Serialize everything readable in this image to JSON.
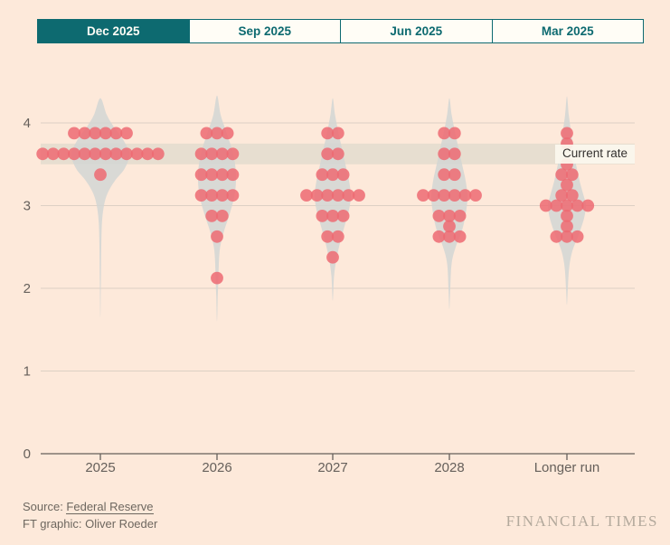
{
  "tabs": [
    {
      "label": "Dec 2025",
      "active": true
    },
    {
      "label": "Sep 2025",
      "active": false
    },
    {
      "label": "Jun 2025",
      "active": false
    },
    {
      "label": "Mar 2025",
      "active": false
    }
  ],
  "current_rate": {
    "label": "Current rate",
    "band_low": 3.5,
    "band_high": 3.75
  },
  "source": {
    "prefix": "Source: ",
    "link": "Federal Reserve",
    "credit": "FT graphic: Oliver Roeder"
  },
  "brand": "FINANCIAL TIMES",
  "colors": {
    "background": "#fde9da",
    "teal": "#0d6a70",
    "tab_inactive_bg": "#fffdf6",
    "dot": "#ed6a72",
    "violin": "#d2d6d4",
    "band": "#e7ded0",
    "gridline": "#ddd0c4",
    "axis": "#66605b",
    "tick_text": "#66605b"
  },
  "chart_data": {
    "type": "scatter",
    "title": "",
    "description": "Fed dot plot: FOMC participants' projections for the federal funds rate (%), midpoints of target ranges, with density violins per horizon",
    "xlabel": "",
    "ylabel": "",
    "ylim": [
      0,
      4.35
    ],
    "y_gridlines": [
      0,
      1,
      2,
      3,
      4
    ],
    "y_tick_labels": [
      "0",
      "1",
      "2",
      "3",
      "4"
    ],
    "categories": [
      "2025",
      "2026",
      "2027",
      "2028",
      "Longer run"
    ],
    "legend": null,
    "grid": true,
    "current_rate_band": [
      3.5,
      3.75
    ],
    "columns": [
      {
        "label": "2025",
        "dots": [
          {
            "value": 3.875,
            "count": 6
          },
          {
            "value": 3.625,
            "count": 12
          },
          {
            "value": 3.375,
            "count": 1
          }
        ]
      },
      {
        "label": "2026",
        "dots": [
          {
            "value": 3.875,
            "count": 3
          },
          {
            "value": 3.625,
            "count": 4
          },
          {
            "value": 3.375,
            "count": 4
          },
          {
            "value": 3.125,
            "count": 4
          },
          {
            "value": 2.875,
            "count": 2
          },
          {
            "value": 2.625,
            "count": 1
          },
          {
            "value": 2.125,
            "count": 1
          }
        ]
      },
      {
        "label": "2027",
        "dots": [
          {
            "value": 3.875,
            "count": 2
          },
          {
            "value": 3.625,
            "count": 2
          },
          {
            "value": 3.375,
            "count": 3
          },
          {
            "value": 3.125,
            "count": 6
          },
          {
            "value": 2.875,
            "count": 3
          },
          {
            "value": 2.625,
            "count": 2
          },
          {
            "value": 2.375,
            "count": 1
          }
        ]
      },
      {
        "label": "2028",
        "dots": [
          {
            "value": 3.875,
            "count": 2
          },
          {
            "value": 3.625,
            "count": 2
          },
          {
            "value": 3.375,
            "count": 2
          },
          {
            "value": 3.125,
            "count": 6
          },
          {
            "value": 2.875,
            "count": 3
          },
          {
            "value": 2.75,
            "count": 1
          },
          {
            "value": 2.625,
            "count": 3
          }
        ]
      },
      {
        "label": "Longer run",
        "dots": [
          {
            "value": 3.875,
            "count": 1
          },
          {
            "value": 3.75,
            "count": 1
          },
          {
            "value": 3.5,
            "count": 1
          },
          {
            "value": 3.375,
            "count": 2
          },
          {
            "value": 3.25,
            "count": 1
          },
          {
            "value": 3.125,
            "count": 2
          },
          {
            "value": 3.0,
            "count": 5
          },
          {
            "value": 2.875,
            "count": 1
          },
          {
            "value": 2.75,
            "count": 1
          },
          {
            "value": 2.625,
            "count": 3
          }
        ]
      }
    ],
    "violins": [
      [
        [
          4.3,
          0
        ],
        [
          4.1,
          7
        ],
        [
          3.95,
          15
        ],
        [
          3.8,
          25
        ],
        [
          3.625,
          32
        ],
        [
          3.45,
          27
        ],
        [
          3.3,
          16
        ],
        [
          3.15,
          8
        ],
        [
          3.0,
          4
        ],
        [
          2.8,
          1.8
        ],
        [
          2.5,
          1
        ],
        [
          2.1,
          0.6
        ],
        [
          1.65,
          0
        ]
      ],
      [
        [
          4.33,
          0
        ],
        [
          4.1,
          4
        ],
        [
          3.9,
          10
        ],
        [
          3.7,
          16
        ],
        [
          3.5,
          20
        ],
        [
          3.3,
          21
        ],
        [
          3.1,
          19
        ],
        [
          2.9,
          14
        ],
        [
          2.7,
          8
        ],
        [
          2.5,
          3.5
        ],
        [
          2.3,
          2
        ],
        [
          2.1,
          1.5
        ],
        [
          1.9,
          0.8
        ],
        [
          1.6,
          0
        ]
      ],
      [
        [
          4.3,
          0
        ],
        [
          4.1,
          2.5
        ],
        [
          3.9,
          6
        ],
        [
          3.7,
          10
        ],
        [
          3.5,
          14
        ],
        [
          3.3,
          18
        ],
        [
          3.125,
          20
        ],
        [
          2.95,
          18
        ],
        [
          2.75,
          13
        ],
        [
          2.55,
          8
        ],
        [
          2.35,
          4
        ],
        [
          2.15,
          1.5
        ],
        [
          1.85,
          0
        ]
      ],
      [
        [
          4.3,
          0
        ],
        [
          4.1,
          2.5
        ],
        [
          3.9,
          6
        ],
        [
          3.7,
          10
        ],
        [
          3.5,
          14
        ],
        [
          3.3,
          18
        ],
        [
          3.1,
          20
        ],
        [
          2.9,
          18
        ],
        [
          2.7,
          14
        ],
        [
          2.5,
          7
        ],
        [
          2.3,
          2.5
        ],
        [
          2.0,
          1
        ],
        [
          1.75,
          0
        ]
      ],
      [
        [
          4.32,
          0
        ],
        [
          4.1,
          2
        ],
        [
          3.9,
          4.5
        ],
        [
          3.7,
          7
        ],
        [
          3.5,
          10
        ],
        [
          3.3,
          14
        ],
        [
          3.1,
          19
        ],
        [
          3.0,
          21
        ],
        [
          2.85,
          19
        ],
        [
          2.65,
          13
        ],
        [
          2.45,
          6
        ],
        [
          2.25,
          2.5
        ],
        [
          2.0,
          1
        ],
        [
          1.8,
          0
        ]
      ]
    ]
  }
}
